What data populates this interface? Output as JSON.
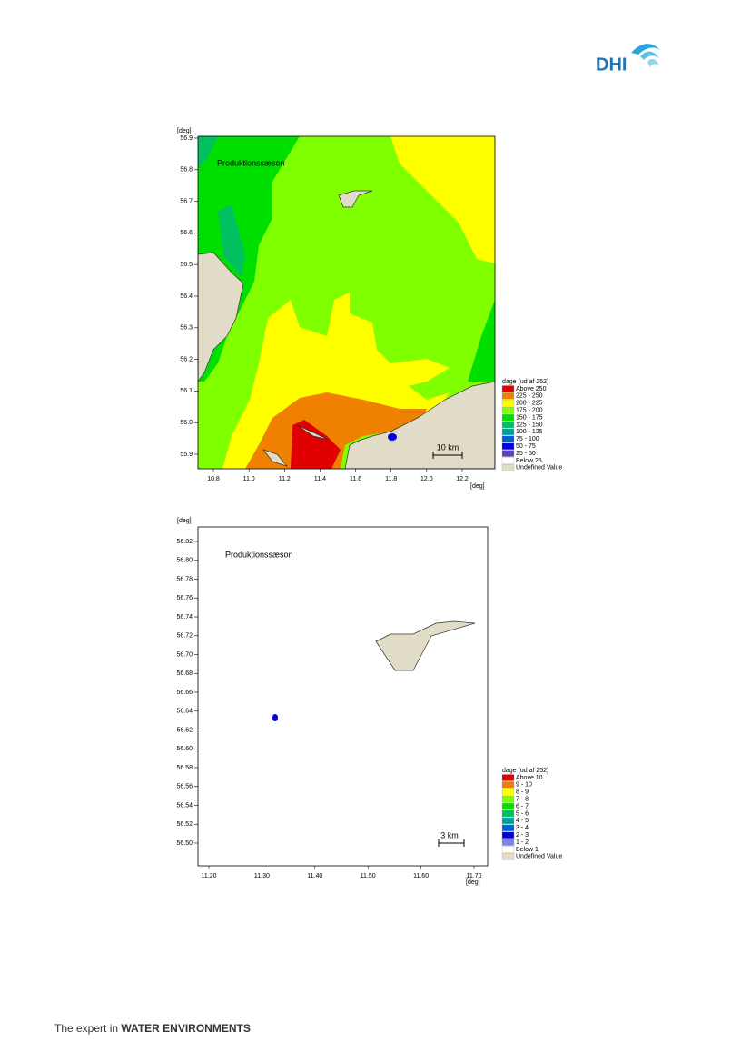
{
  "header": {
    "logo": "DHI"
  },
  "maps": [
    {
      "y_unit": "[deg]",
      "x_unit": "[deg]",
      "label": "Produktionssæson",
      "yticks": [
        "56.9",
        "56.8",
        "56.7",
        "56.6",
        "56.5",
        "56.4",
        "56.3",
        "56.2",
        "56.1",
        "56.0",
        "55.9"
      ],
      "xticks": [
        "10.8",
        "11.0",
        "11.2",
        "11.4",
        "11.6",
        "11.8",
        "12.0",
        "12.2"
      ],
      "scale_bar": "10 km",
      "legend": {
        "title": "dage (ud af 252)",
        "items": [
          {
            "label": "Above 250",
            "color": "#e00000"
          },
          {
            "label": "225 - 250",
            "color": "#f08000"
          },
          {
            "label": "200 - 225",
            "color": "#ffff00"
          },
          {
            "label": "175 - 200",
            "color": "#80ff00"
          },
          {
            "label": "150 - 175",
            "color": "#00e000"
          },
          {
            "label": "125 - 150",
            "color": "#00c060"
          },
          {
            "label": "100 - 125",
            "color": "#00a0a0"
          },
          {
            "label": "75 - 100",
            "color": "#0060d0"
          },
          {
            "label": "50 - 75",
            "color": "#0000e0"
          },
          {
            "label": "25 - 50",
            "color": "#6040c0"
          },
          {
            "label": "Below 25",
            "color": "#ffffff"
          },
          {
            "label": "Undefined Value",
            "color": "#e0dcc8"
          }
        ]
      }
    },
    {
      "y_unit": "[deg]",
      "x_unit": "[deg]",
      "label": "Produktionssæson",
      "yticks": [
        "56.82",
        "56.80",
        "56.78",
        "56.76",
        "56.74",
        "56.72",
        "56.70",
        "56.68",
        "56.66",
        "56.64",
        "56.62",
        "56.60",
        "56.58",
        "56.56",
        "56.54",
        "56.52",
        "56.50"
      ],
      "xticks": [
        "11.20",
        "11.30",
        "11.40",
        "11.50",
        "11.60",
        "11.70"
      ],
      "scale_bar": "3 km",
      "legend": {
        "title": "dage (ud af 252)",
        "items": [
          {
            "label": "Above 10",
            "color": "#e00000"
          },
          {
            "label": "9 - 10",
            "color": "#f08000"
          },
          {
            "label": "8 - 9",
            "color": "#ffff00"
          },
          {
            "label": "7 - 8",
            "color": "#80ff00"
          },
          {
            "label": "6 - 7",
            "color": "#00e000"
          },
          {
            "label": "5 - 6",
            "color": "#00c060"
          },
          {
            "label": "4 - 5",
            "color": "#00a0a0"
          },
          {
            "label": "3 - 4",
            "color": "#0060d0"
          },
          {
            "label": "2 - 3",
            "color": "#0000e0"
          },
          {
            "label": "1 - 2",
            "color": "#8080f0"
          },
          {
            "label": "Below 1",
            "color": "#ffffff"
          },
          {
            "label": "Undefined Value",
            "color": "#e0dcc8"
          }
        ]
      }
    }
  ],
  "footer": {
    "tagline_prefix": "The expert in",
    "tagline_bold": "WATER ENVIRONMENTS"
  }
}
